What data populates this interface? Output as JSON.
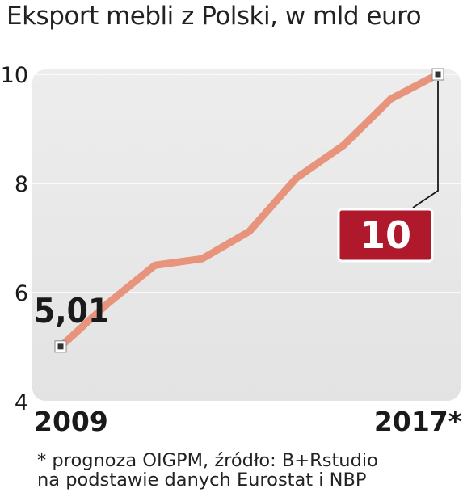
{
  "title": "Eksport mebli z Polski, w mld euro",
  "chart_data": {
    "type": "line",
    "title": "Eksport mebli z Polski, w mld euro",
    "x": [
      2009,
      2010,
      2011,
      2012,
      2013,
      2014,
      2015,
      2016,
      2017
    ],
    "x_tick_labels": [
      "2009",
      "2017*"
    ],
    "values": [
      5.01,
      5.8,
      6.5,
      6.62,
      7.12,
      8.1,
      8.7,
      9.55,
      10.0
    ],
    "ylim": [
      4,
      10
    ],
    "yticks": [
      "4",
      "6",
      "8",
      "10"
    ],
    "annotations": {
      "start": "5,01",
      "end": "10"
    },
    "grid": true,
    "line_color": "#e8937c",
    "highlight_color": "#b0182c"
  },
  "footnote": {
    "line1": "* prognoza OIGPM, źródło: B+Rstudio",
    "line2": "na podstawie danych Eurostat i NBP"
  }
}
